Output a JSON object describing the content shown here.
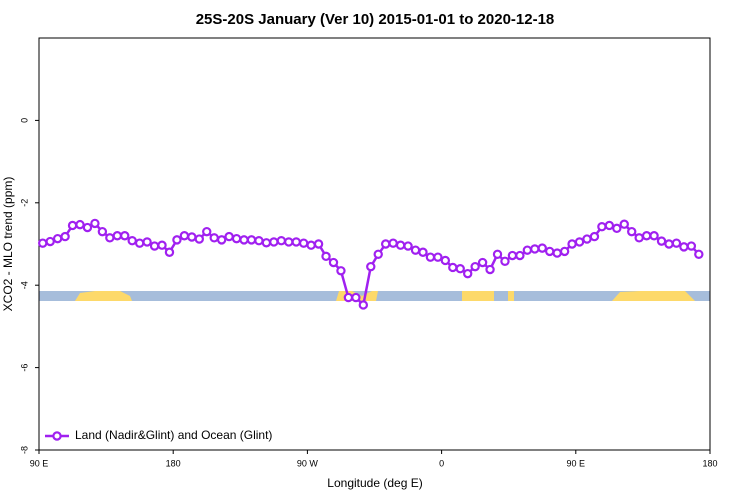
{
  "chart_data": {
    "type": "line",
    "title": "25S-20S January (Ver 10)   2015-01-01 to 2020-12-18",
    "x_label": "Longitude (deg E)",
    "y_label": "XCO2 - MLO trend (ppm)",
    "x": [
      92.5,
      97.5,
      102.5,
      107.5,
      112.5,
      117.5,
      122.5,
      127.5,
      132.5,
      137.5,
      142.5,
      147.5,
      152.5,
      157.5,
      162.5,
      167.5,
      172.5,
      177.5,
      182.5,
      187.5,
      192.5,
      197.5,
      202.5,
      207.5,
      212.5,
      217.5,
      222.5,
      227.5,
      232.5,
      237.5,
      242.5,
      247.5,
      252.5,
      257.5,
      262.5,
      267.5,
      272.5,
      277.5,
      282.5,
      287.5,
      292.5,
      297.5,
      302.5,
      307.5,
      312.5,
      317.5,
      322.5,
      327.5,
      332.5,
      337.5,
      342.5,
      347.5,
      352.5,
      357.5,
      362.5,
      367.5,
      372.5,
      377.5,
      382.5,
      387.5,
      392.5,
      397.5,
      402.5,
      407.5,
      412.5,
      417.5,
      422.5,
      427.5,
      432.5,
      437.5,
      442.5,
      447.5,
      452.5,
      457.5,
      462.5,
      467.5,
      472.5,
      477.5,
      482.5,
      487.5,
      492.5,
      497.5,
      502.5,
      507.5,
      512.5,
      517.5,
      522.5,
      527.5,
      532.5
    ],
    "series": [
      {
        "name": "Land (Nadir&Glint) and Ocean (Glint)",
        "color": "#a020f0",
        "values": [
          -2.98,
          -2.94,
          -2.87,
          -2.82,
          -2.55,
          -2.53,
          -2.6,
          -2.5,
          -2.7,
          -2.85,
          -2.8,
          -2.8,
          -2.92,
          -2.98,
          -2.95,
          -3.05,
          -3.03,
          -3.2,
          -2.9,
          -2.8,
          -2.83,
          -2.88,
          -2.7,
          -2.85,
          -2.9,
          -2.82,
          -2.87,
          -2.9,
          -2.9,
          -2.92,
          -2.97,
          -2.95,
          -2.92,
          -2.95,
          -2.95,
          -2.98,
          -3.03,
          -3.0,
          -3.3,
          -3.45,
          -3.65,
          -4.3,
          -4.3,
          -4.48,
          -3.55,
          -3.25,
          -3.0,
          -2.98,
          -3.03,
          -3.05,
          -3.15,
          -3.2,
          -3.32,
          -3.32,
          -3.4,
          -3.57,
          -3.6,
          -3.72,
          -3.55,
          -3.45,
          -3.62,
          -3.25,
          -3.42,
          -3.28,
          -3.28,
          -3.15,
          -3.12,
          -3.1,
          -3.18,
          -3.22,
          -3.18,
          -3.0,
          -2.95,
          -2.88,
          -2.82,
          -2.58,
          -2.55,
          -2.62,
          -2.52,
          -2.7,
          -2.85,
          -2.8,
          -2.8,
          -2.93,
          -3.0,
          -2.98,
          -3.07,
          -3.05,
          -3.25
        ]
      }
    ],
    "xlim": [
      90,
      540
    ],
    "xticks": [
      {
        "value": 90,
        "label": "90 E"
      },
      180,
      {
        "value": 270,
        "label": "90 W"
      },
      {
        "value": 360,
        "label": "0"
      },
      {
        "value": 450,
        "label": "90 E"
      },
      {
        "value": 540,
        "label": "180"
      }
    ],
    "ylim": [
      -8,
      2
    ],
    "yticks": [
      0,
      -2,
      -4,
      -6,
      -8
    ],
    "legend": "bottom-left",
    "grid": false
  }
}
